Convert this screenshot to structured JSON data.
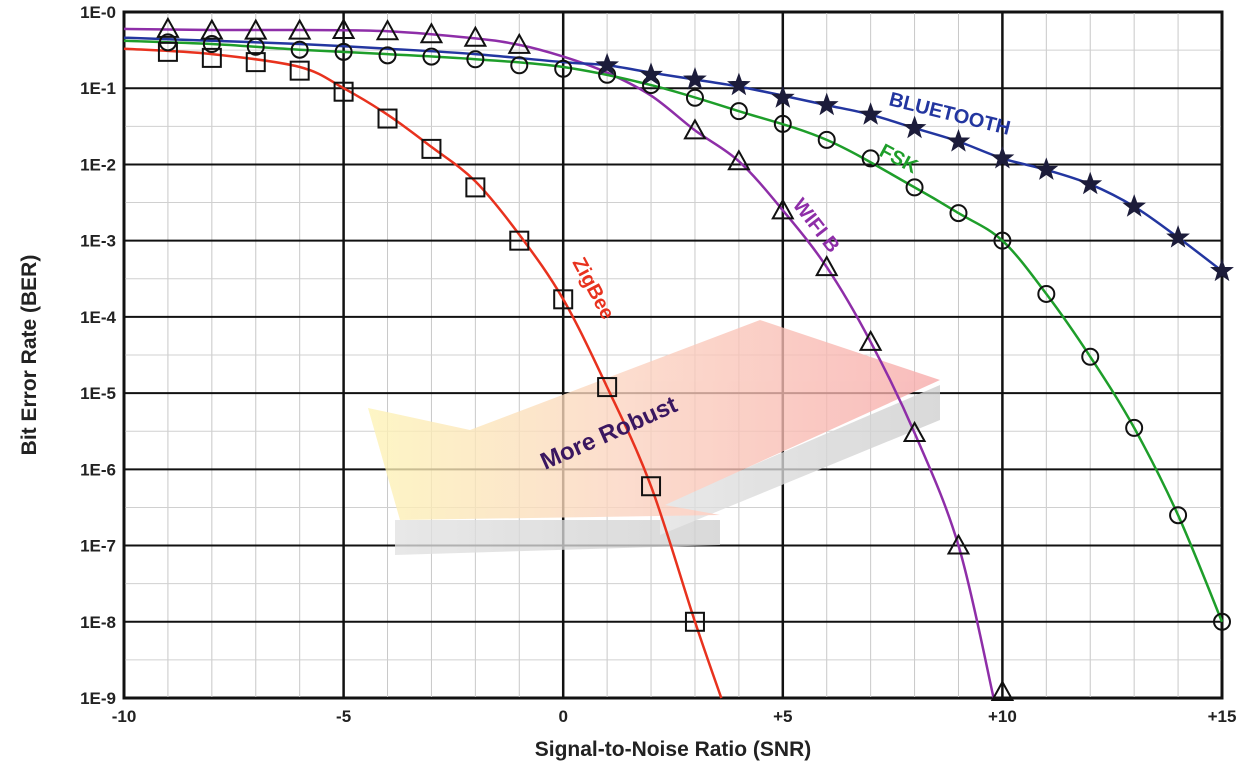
{
  "chart_data": {
    "type": "line",
    "title": "",
    "xlabel": "Signal-to-Noise Ratio (SNR)",
    "ylabel": "Bit Error Rate (BER)",
    "xlim": [
      -10,
      15
    ],
    "ylim_log10": [
      -9,
      0
    ],
    "y_scale": "log",
    "grid": true,
    "x_ticks": [
      -10,
      -5,
      0,
      5,
      10,
      15
    ],
    "x_tick_labels": [
      "-10",
      "-5",
      "0",
      "+5",
      "+10",
      "+15"
    ],
    "y_ticks_log10": [
      0,
      -1,
      -2,
      -3,
      -4,
      -5,
      -6,
      -7,
      -8,
      -9
    ],
    "y_tick_labels": [
      "1E-0",
      "1E-1",
      "1E-2",
      "1E-3",
      "1E-4",
      "1E-5",
      "1E-6",
      "1E-7",
      "1E-8",
      "1E-9"
    ],
    "annotation": "More Robust",
    "series": [
      {
        "name": "ZigBee",
        "color": "#e8321e",
        "marker": "square",
        "points": [
          [
            -9,
            0.3
          ],
          [
            -8,
            0.25
          ],
          [
            -7,
            0.22
          ],
          [
            -6,
            0.17
          ],
          [
            -5,
            0.09
          ],
          [
            -4,
            0.04
          ],
          [
            -3,
            0.016
          ],
          [
            -2,
            0.005
          ],
          [
            -1,
            0.001
          ],
          [
            0,
            0.00017
          ],
          [
            1,
            1.2e-05
          ],
          [
            2,
            6e-07
          ],
          [
            3,
            1e-08
          ]
        ],
        "curve": [
          [
            -10,
            0.33
          ],
          [
            -8,
            0.28
          ],
          [
            -6,
            0.19
          ],
          [
            -5,
            0.1
          ],
          [
            -4,
            0.045
          ],
          [
            -3,
            0.017
          ],
          [
            -2,
            0.006
          ],
          [
            -1,
            0.0012
          ],
          [
            0,
            0.00017
          ],
          [
            1,
            1.2e-05
          ],
          [
            2,
            6e-07
          ],
          [
            3,
            1e-08
          ],
          [
            3.6,
            1e-09
          ]
        ]
      },
      {
        "name": "WIFI B",
        "color": "#8e2ea8",
        "marker": "triangle",
        "points": [
          [
            -9,
            0.6
          ],
          [
            -8,
            0.57
          ],
          [
            -7,
            0.57
          ],
          [
            -6,
            0.57
          ],
          [
            -5,
            0.58
          ],
          [
            -4,
            0.56
          ],
          [
            -3,
            0.51
          ],
          [
            -2,
            0.46
          ],
          [
            -1,
            0.37
          ],
          [
            3,
            0.028
          ],
          [
            4,
            0.011
          ],
          [
            5,
            0.0025
          ],
          [
            6,
            0.00045
          ],
          [
            7,
            4.7e-05
          ],
          [
            8,
            3e-06
          ],
          [
            9,
            1e-07
          ],
          [
            10,
            1.2e-09
          ]
        ],
        "curve": [
          [
            -10,
            0.6
          ],
          [
            -8,
            0.58
          ],
          [
            -6,
            0.58
          ],
          [
            -4,
            0.56
          ],
          [
            -2,
            0.45
          ],
          [
            -1,
            0.37
          ],
          [
            0,
            0.26
          ],
          [
            1,
            0.16
          ],
          [
            2,
            0.08
          ],
          [
            3,
            0.028
          ],
          [
            4,
            0.011
          ],
          [
            5,
            0.0025
          ],
          [
            6,
            0.00045
          ],
          [
            7,
            4.7e-05
          ],
          [
            8,
            3e-06
          ],
          [
            9,
            1e-07
          ],
          [
            9.8,
            1e-09
          ]
        ]
      },
      {
        "name": "FSK",
        "color": "#1e9e2a",
        "marker": "circle",
        "points": [
          [
            -9,
            0.4
          ],
          [
            -8,
            0.38
          ],
          [
            -7,
            0.35
          ],
          [
            -6,
            0.32
          ],
          [
            -5,
            0.3
          ],
          [
            -4,
            0.27
          ],
          [
            -3,
            0.26
          ],
          [
            -2,
            0.24
          ],
          [
            -1,
            0.2
          ],
          [
            0,
            0.18
          ],
          [
            1,
            0.15
          ],
          [
            2,
            0.11
          ],
          [
            3,
            0.075
          ],
          [
            4,
            0.05
          ],
          [
            5,
            0.034
          ],
          [
            6,
            0.021
          ],
          [
            7,
            0.012
          ],
          [
            8,
            0.005
          ],
          [
            9,
            0.0023
          ],
          [
            10,
            0.001
          ],
          [
            11,
            0.0002
          ],
          [
            12,
            3e-05
          ],
          [
            13,
            3.5e-06
          ],
          [
            14,
            2.5e-07
          ],
          [
            15,
            1e-08
          ]
        ],
        "curve": [
          [
            -10,
            0.42
          ],
          [
            -8,
            0.38
          ],
          [
            -6,
            0.32
          ],
          [
            -4,
            0.28
          ],
          [
            -2,
            0.24
          ],
          [
            0,
            0.19
          ],
          [
            2,
            0.11
          ],
          [
            4,
            0.05
          ],
          [
            6,
            0.021
          ],
          [
            8,
            0.005
          ],
          [
            9,
            0.0023
          ],
          [
            10,
            0.001
          ],
          [
            11,
            0.0002
          ],
          [
            12,
            3e-05
          ],
          [
            13,
            3.5e-06
          ],
          [
            14,
            2.5e-07
          ],
          [
            15,
            1e-08
          ]
        ]
      },
      {
        "name": "BLUETOOTH",
        "color": "#2336a0",
        "marker": "star",
        "points": [
          [
            1,
            0.2
          ],
          [
            2,
            0.15
          ],
          [
            3,
            0.13
          ],
          [
            4,
            0.11
          ],
          [
            5,
            0.075
          ],
          [
            6,
            0.06
          ],
          [
            7,
            0.045
          ],
          [
            8,
            0.03
          ],
          [
            9,
            0.02
          ],
          [
            10,
            0.012
          ],
          [
            11,
            0.0085
          ],
          [
            12,
            0.0055
          ],
          [
            13,
            0.0028
          ],
          [
            14,
            0.0011
          ],
          [
            15,
            0.0004
          ]
        ],
        "curve": [
          [
            -10,
            0.46
          ],
          [
            -8,
            0.42
          ],
          [
            -6,
            0.38
          ],
          [
            -4,
            0.33
          ],
          [
            -2,
            0.28
          ],
          [
            0,
            0.22
          ],
          [
            1,
            0.2
          ],
          [
            2,
            0.16
          ],
          [
            3,
            0.13
          ],
          [
            4,
            0.105
          ],
          [
            5,
            0.08
          ],
          [
            6,
            0.06
          ],
          [
            7,
            0.045
          ],
          [
            8,
            0.03
          ],
          [
            9,
            0.02
          ],
          [
            10,
            0.012
          ],
          [
            11,
            0.0085
          ],
          [
            12,
            0.0055
          ],
          [
            13,
            0.0028
          ],
          [
            14,
            0.0011
          ],
          [
            15,
            0.0004
          ]
        ]
      }
    ],
    "series_labels": [
      "ZigBee",
      "WIFI B",
      "FSK",
      "BLUETOOTH"
    ]
  }
}
